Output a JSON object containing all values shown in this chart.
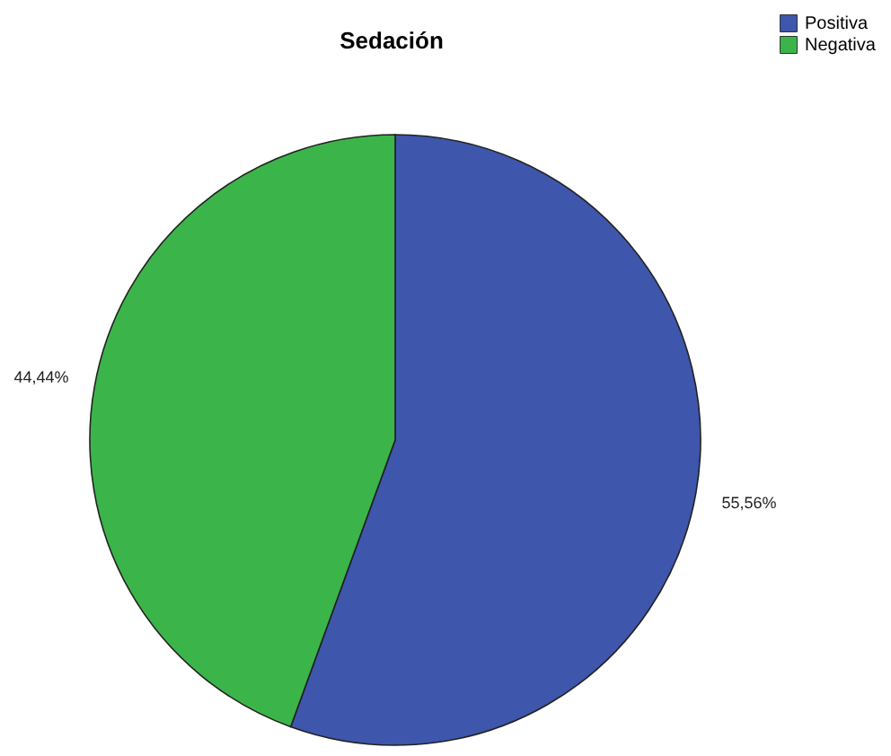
{
  "chart_data": {
    "type": "pie",
    "title": "Sedación",
    "categories": [
      "Positiva",
      "Negativa"
    ],
    "values": [
      55.56,
      44.44
    ],
    "colors": [
      "#3e56ab",
      "#3bb54a"
    ],
    "value_labels": [
      "55,56%",
      "44,44%"
    ],
    "legend": "top right"
  }
}
